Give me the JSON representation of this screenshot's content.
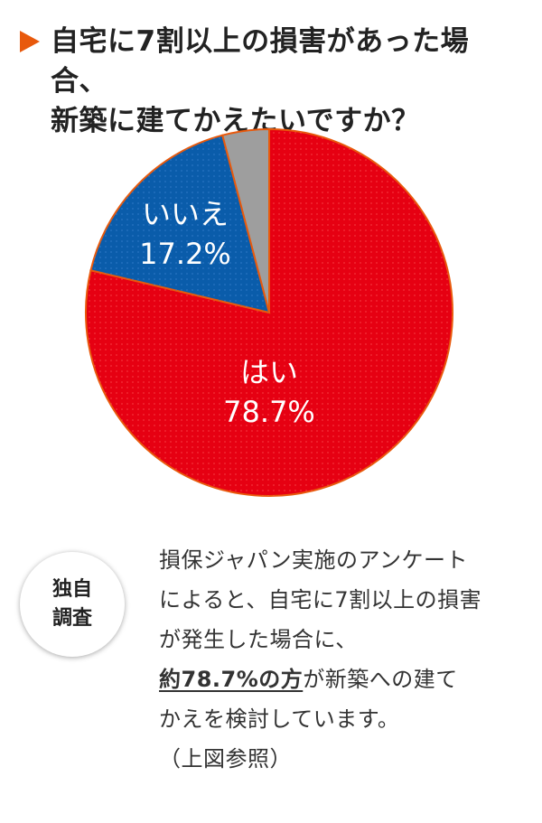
{
  "title": {
    "line1": "自宅に7割以上の損害があった場合、",
    "line2": "新築に建てかえたいですか？"
  },
  "chart_data": {
    "type": "pie",
    "slices": [
      {
        "label": "はい",
        "value": 78.7,
        "value_label": "78.7%",
        "color": "#e60012"
      },
      {
        "label": "いいえ",
        "value": 17.2,
        "value_label": "17.2%",
        "color": "#0a5caa"
      },
      {
        "label": "",
        "value": 4.1,
        "value_label": "",
        "color": "#9e9e9e"
      }
    ],
    "start_angle": "12 o'clock, clockwise",
    "legend": "none"
  },
  "badge": {
    "line1": "独自",
    "line2": "調査"
  },
  "note": {
    "line1": "損保ジャパン実施のアンケート",
    "line2": "によると、自宅に7割以上の損害",
    "line3": "が発生した場合に、",
    "line4_emph": "約78.7%の方",
    "line4_rest": "が新築への建て",
    "line5": "かえを検討しています。",
    "line6": "（上図参照）"
  }
}
